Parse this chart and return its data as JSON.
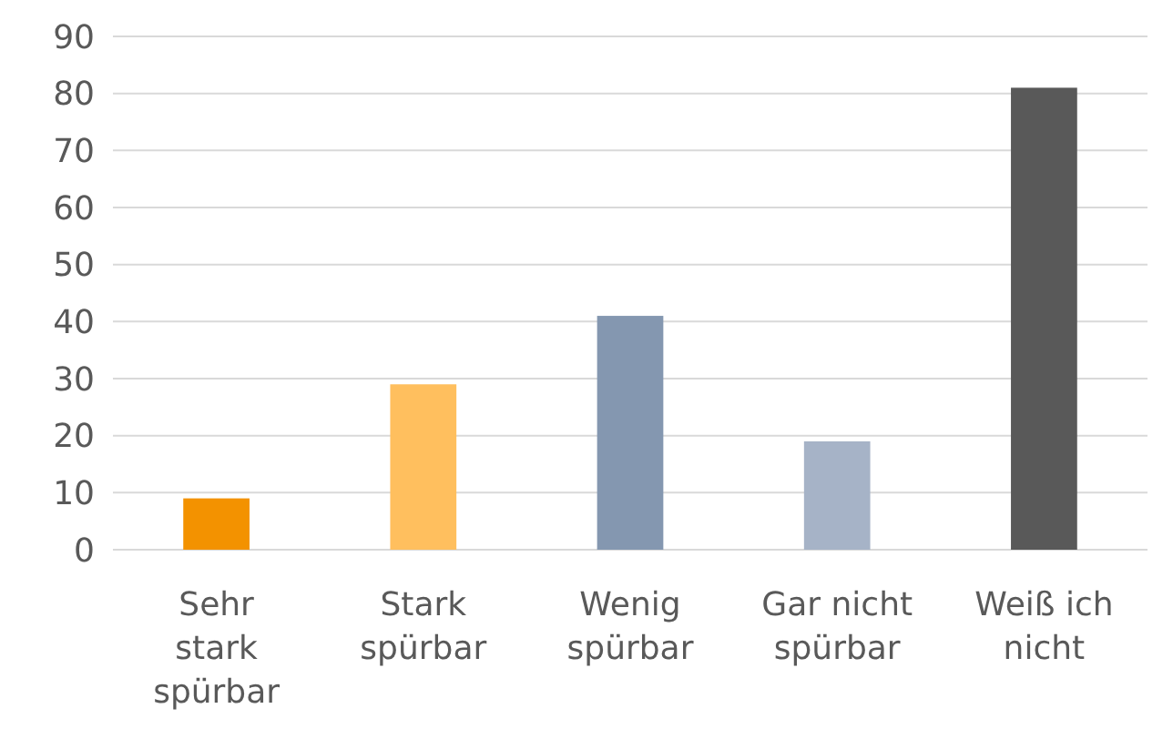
{
  "chart_data": {
    "type": "bar",
    "categories": [
      "Sehr stark spürbar",
      "Stark spürbar",
      "Wenig spürbar",
      "Gar nicht spürbar",
      "Weiß ich nicht"
    ],
    "values": [
      9,
      29,
      41,
      19,
      81
    ],
    "colors": [
      "#f39200",
      "#ffbf5e",
      "#8497b0",
      "#a6b3c7",
      "#595959"
    ],
    "ylim": [
      0,
      90
    ],
    "yticks": [
      0,
      10,
      20,
      30,
      40,
      50,
      60,
      70,
      80,
      90
    ],
    "grid": "y"
  }
}
